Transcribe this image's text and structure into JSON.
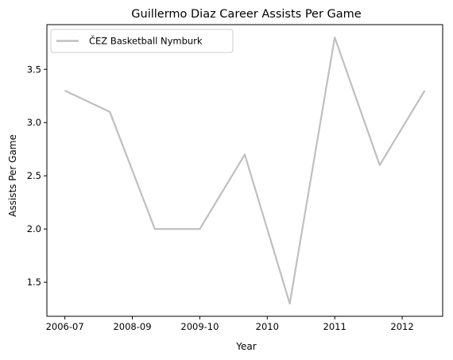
{
  "chart_data": {
    "type": "line",
    "title": "Guillermo Diaz  Career Assists Per Game",
    "xlabel": "Year",
    "ylabel": "Assists Per Game",
    "x_positions": [
      0,
      1,
      2,
      3,
      4,
      5,
      6,
      7,
      8
    ],
    "x_ticks": [
      {
        "pos": 0,
        "label": "2006-07"
      },
      {
        "pos": 1.5,
        "label": "2008-09"
      },
      {
        "pos": 3,
        "label": "2009-10"
      },
      {
        "pos": 4.5,
        "label": "2010"
      },
      {
        "pos": 6,
        "label": "2011"
      },
      {
        "pos": 7.5,
        "label": "2012"
      }
    ],
    "xlim": [
      -0.4,
      8.4
    ],
    "ylim": [
      1.18,
      3.92
    ],
    "y_ticks": [
      1.5,
      2.0,
      2.5,
      3.0,
      3.5
    ],
    "grid": false,
    "legend_position": "upper left",
    "series": [
      {
        "name": "ČEZ Basketball Nymburk",
        "color": "#bfbfbf",
        "values": [
          3.3,
          3.1,
          2.0,
          2.0,
          2.7,
          1.3,
          3.8,
          2.6,
          3.3
        ]
      }
    ]
  }
}
